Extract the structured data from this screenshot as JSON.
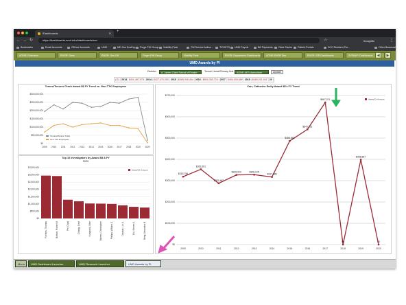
{
  "browser": {
    "tab_title": "iDashboards",
    "url": "https://dashboards.umd.edu/idashboards/sso",
    "profile": "Incognito",
    "bookmarks": [
      "Bookmarks",
      "Email Accounts",
      "GDrive Accounts",
      "UMD",
      "MD Gov BoxExp",
      "Forge PHI Group",
      "Viability Pack",
      "TW Service Activa...",
      "TICKETS",
      "UMD Payroll",
      "Bill Payments",
      "Clear Cache",
      "Patient Portals",
      "SCC Resident Por...",
      "Other Bookmarks"
    ]
  },
  "dashboard_tabs": [
    "AGNR: Extension",
    "ENGR: Gees",
    "ENGR: Gen OK",
    "Finger PHI Group",
    "Viability Pack",
    "ENGR: Department Dashboards",
    "AGNR-ENGR Dev",
    "ENGR: ISR Dashboards",
    "SVPAAP: Dashboards"
  ],
  "dashboard": {
    "title": "UMD Awards by PI",
    "filters": {
      "division_label": "Division",
      "division_value": "A. James Clark School of Engine",
      "tenure_label": "Tenure Home/Primary Unit",
      "tenure_value": "AGNR-AES-Agriculture",
      "update_label": "Update"
    },
    "year_totals": [
      {
        "year": "",
        "amount": "(11)"
      },
      {
        "year": "2013",
        "amount": "$411,487,975"
      },
      {
        "year": "2014",
        "amount": "$427,470,050"
      },
      {
        "year": "2015",
        "amount": "$489,908,464"
      },
      {
        "year": "2016",
        "amount": "$500,300,724"
      },
      {
        "year": "2017",
        "amount": "$454,005,689"
      },
      {
        "year": "2018",
        "amount": "$480,001,542"
      },
      {
        "year": "20",
        "amount": ""
      }
    ]
  },
  "chart_data": [
    {
      "type": "line",
      "title": "Tenure/Tenured Track Award $$ FY Trend vs. Non-TTK Employees",
      "x": [
        "2009",
        "2010",
        "2011",
        "2012",
        "2013",
        "2014",
        "2015",
        "2016",
        "2017",
        "2018",
        "2019",
        "2020"
      ],
      "ylim": [
        0,
        300000000
      ],
      "yticks": [
        "$0",
        "$50,000,000",
        "$100,000,000",
        "$150,000,000",
        "$200,000,000",
        "$250,000,000",
        "$300,000,000"
      ],
      "series": [
        {
          "name": "Tenured/Tenure Track",
          "color": "#7f8c7f",
          "values": [
            195000000,
            235000000,
            210000000,
            250000000,
            245000000,
            220000000,
            225000000,
            250000000,
            245000000,
            270000000,
            280000000,
            20000000
          ]
        },
        {
          "name": "Non-TTK Employees",
          "color": "#e0a040",
          "values": [
            70000000,
            110000000,
            120000000,
            100000000,
            115000000,
            120000000,
            125000000,
            110000000,
            110000000,
            95000000,
            90000000,
            5000000
          ]
        }
      ],
      "legend": "bottom-left"
    },
    {
      "type": "bar",
      "title": "Top 10 Investigators by Award $$ & FY",
      "subtitle": "2020",
      "categories": [
        "Fuentes, Thomas",
        "Bottner, Robert M",
        "Pei, Chad",
        "Chiang, Dewi",
        "Kuniyoshi, Mike",
        "Barnes, Christopher",
        "Phillips, William D.",
        "Dinakar, Luc A.",
        "Wu, Steven A.",
        "Betty, Alexandra B."
      ],
      "values": [
        2950000,
        2920000,
        1290000,
        1180000,
        1030000,
        1020000,
        1000000,
        900000,
        800000,
        750000
      ],
      "ylim": [
        0,
        3500000
      ],
      "yticks": [
        "$0",
        "$500,000",
        "$1,000,000",
        "$1,500,000",
        "$2,000,000",
        "$2,500,000",
        "$3,000,000",
        "$3,500,000"
      ],
      "legend_label": "Award Dr Amount",
      "color": "#9b2a35"
    },
    {
      "type": "line",
      "title": "Carr, Catherine Emily Award $$'s FY Trend",
      "x": [
        "2009",
        "2010",
        "2011",
        "2012",
        "2013",
        "2014",
        "2015",
        "2016",
        "2017",
        "2018",
        "2019",
        "2020"
      ],
      "values": [
        318756,
        353361,
        287467,
        326923,
        328125,
        317386,
        486563,
        541113,
        667221,
        0,
        398867,
        0
      ],
      "data_labels": [
        "$318,756",
        "$353,361",
        "$287,467",
        "$326,923",
        "$328,125",
        "$317,386",
        "$486,563",
        "$541,113",
        "$667,221",
        "$0",
        "$398,867",
        "$0"
      ],
      "ylim": [
        0,
        700000
      ],
      "yticks": [
        "$0",
        "$100,000",
        "$200,000",
        "$300,000",
        "$400,000",
        "$500,000",
        "$600,000",
        "$700,000"
      ],
      "legend_label": "Award Dr Amount",
      "color": "#9b2a35"
    }
  ],
  "bottom_tabs": [
    "Menu",
    "UMD Dashboard Launcher",
    "UMD Research Launcher",
    "UMD Awards by PI"
  ],
  "annotations": {
    "arrow_green_color": "#27b35f",
    "arrow_pink_color": "#e052b4"
  }
}
